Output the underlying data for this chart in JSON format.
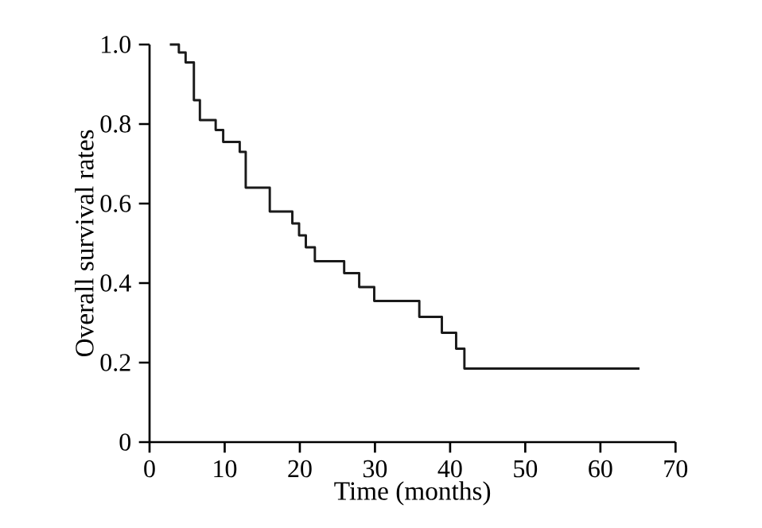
{
  "chart_data": {
    "type": "step",
    "xlabel": "Time (months)",
    "ylabel": "Overall survival rates",
    "xlim": [
      0,
      70
    ],
    "xticks": [
      0,
      10,
      20,
      30,
      40,
      50,
      60,
      70
    ],
    "ylim": [
      0,
      1.0
    ],
    "yticks": [
      {
        "value": 0,
        "label": "0"
      },
      {
        "value": 0.2,
        "label": "0.2"
      },
      {
        "value": 0.4,
        "label": "0.4"
      },
      {
        "value": 0.6,
        "label": "0.6"
      },
      {
        "value": 0.8,
        "label": "0.8"
      },
      {
        "value": 1.0,
        "label": "1.0"
      }
    ],
    "grid": false,
    "marker": "none",
    "line_style": "solid",
    "series": [
      {
        "color": "#1a1a1a",
        "x": [
          2.7,
          3.9,
          4.8,
          5.9,
          6.7,
          8.8,
          9.8,
          12.0,
          12.8,
          16.0,
          19.0,
          19.9,
          20.8,
          22.0,
          25.9,
          27.9,
          29.9,
          35.9,
          38.9,
          40.8,
          41.9,
          65.2
        ],
        "values": [
          1.0,
          0.98,
          0.955,
          0.86,
          0.81,
          0.785,
          0.755,
          0.73,
          0.64,
          0.58,
          0.55,
          0.52,
          0.49,
          0.455,
          0.425,
          0.39,
          0.355,
          0.315,
          0.275,
          0.235,
          0.185,
          0.185
        ]
      }
    ]
  }
}
